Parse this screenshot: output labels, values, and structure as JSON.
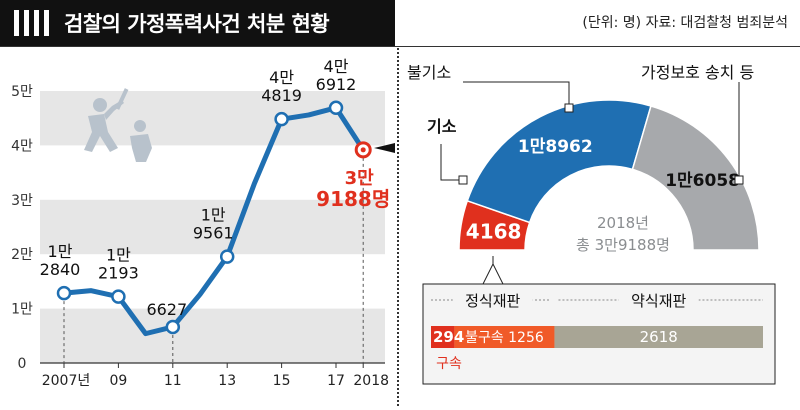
{
  "header": {
    "title": "검찰의 가정폭력사건 처분 현황",
    "source": "(단위: 명) 자료: 대검찰청 범죄분석"
  },
  "chart_data": [
    {
      "type": "line",
      "x": [
        2007,
        2008,
        2009,
        2010,
        2011,
        2012,
        2013,
        2014,
        2015,
        2016,
        2017,
        2018
      ],
      "values": [
        12840,
        13300,
        12193,
        5400,
        6627,
        12600,
        19561,
        33000,
        44819,
        45600,
        46912,
        39188
      ],
      "labeled_points": [
        {
          "year": "2007년",
          "man": "1만",
          "rest": "2840"
        },
        {
          "year": "09",
          "man": "1만",
          "rest": "2193"
        },
        {
          "year": "11",
          "man": "",
          "rest": "6627"
        },
        {
          "year": "13",
          "man": "1만",
          "rest": "9561"
        },
        {
          "year": "15",
          "man": "4만",
          "rest": "4819"
        },
        {
          "year": "17",
          "man": "4만",
          "rest": "6912"
        },
        {
          "year": "2018",
          "man": "3만",
          "rest": "9188명"
        }
      ],
      "y_ticks": [
        "0",
        "1만",
        "2만",
        "3만",
        "4만",
        "5만"
      ],
      "x_ticks": [
        "2007년",
        "09",
        "11",
        "13",
        "15",
        "17",
        "2018"
      ],
      "ylim": [
        0,
        55000
      ],
      "line_color": "#1f6fb2",
      "highlight_color": "#e0301e",
      "band_color": "#e6e6e6"
    },
    {
      "type": "pie",
      "shape": "half-donut",
      "labels": [
        "기소",
        "불기소",
        "가정보호 송치 등"
      ],
      "values": [
        4168,
        18962,
        16058
      ],
      "value_labels": [
        "4168",
        "1만8962",
        "1만6058"
      ],
      "colors": [
        "#e0301e",
        "#1f6fb2",
        "#a7a9ac"
      ],
      "center_label": [
        "2018년",
        "총 3만9188명"
      ]
    },
    {
      "type": "bar",
      "stacked": true,
      "categories": [
        "구속",
        "불구속",
        "약식재판"
      ],
      "values": [
        294,
        1256,
        2618
      ],
      "value_labels": [
        "294",
        "1256",
        "2618"
      ],
      "group_labels": [
        "정식재판",
        "약식재판"
      ],
      "bar_texts": [
        "불구속"
      ],
      "below_labels": [
        "구속"
      ],
      "colors": [
        "#e0301e",
        "#f05a28",
        "#a8a595"
      ]
    }
  ]
}
